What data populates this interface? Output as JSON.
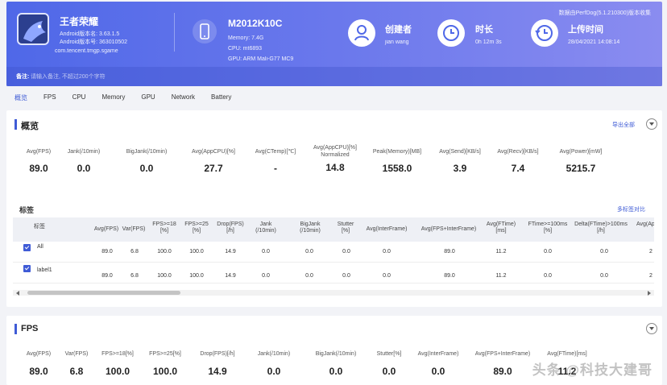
{
  "header": {
    "app_name": "王者荣耀",
    "android_version_line": "Android版本名: 3.63.1.5",
    "android_code_line": "Android版本号: 363010502",
    "package": "com.tencent.tmgp.sgame",
    "device_model": "M2012K10C",
    "memory": "Memory: 7.4G",
    "cpu": "CPU: mt6893",
    "gpu": "GPU: ARM Mali-G77 MC9",
    "creator_title": "创建者",
    "creator_name": "jian wang",
    "duration_title": "时长",
    "duration_value": "0h 12m 3s",
    "upload_title": "上传时间",
    "upload_value": "28/04/2021 14:08:14",
    "perfdog_version": "数据由PerfDog(5.1.210300)版本收集",
    "remark_label": "备注:",
    "remark_placeholder": "请输入备注, 不超过200个字符"
  },
  "tabs": [
    "概览",
    "FPS",
    "CPU",
    "Memory",
    "GPU",
    "Network",
    "Battery"
  ],
  "overview": {
    "title": "概览",
    "export_label": "导出全部",
    "metrics": [
      {
        "label": "Avg(FPS)",
        "value": "89.0"
      },
      {
        "label": "Jank(/10min)",
        "value": "0.0"
      },
      {
        "label": "BigJank(/10min)",
        "value": "0.0"
      },
      {
        "label": "Avg(AppCPU)[%]",
        "value": "27.7"
      },
      {
        "label": "Avg(CTemp)[℃]",
        "value": "-"
      },
      {
        "label": "Avg(AppCPU)[%] Normalized",
        "value": "14.8"
      },
      {
        "label": "Peak(Memory)[MB]",
        "value": "1558.0"
      },
      {
        "label": "Avg(Send)[KB/s]",
        "value": "3.9"
      },
      {
        "label": "Avg(Recv)[KB/s]",
        "value": "7.4"
      },
      {
        "label": "Avg(Power)[mW]",
        "value": "5215.7"
      }
    ],
    "label_section_title": "标签",
    "multi_label_link": "多标签对比"
  },
  "label_table": {
    "headers": [
      "标签",
      "Avg(FPS)",
      "Var(FPS)",
      "FPS>=18 [%]",
      "FPS>=25 [%]",
      "Drop(FPS) [/h]",
      "Jank (/10min)",
      "BigJank (/10min)",
      "Stutter [%]",
      "Avg(InterFrame)",
      "Avg(FPS+InterFrame)",
      "Avg(FTime) [ms]",
      "FTime>=100ms [%]",
      "Delta(FTime)>100ms [/h]",
      "Avg(Ap"
    ],
    "rows": [
      {
        "label": "All",
        "cells": [
          "89.0",
          "6.8",
          "100.0",
          "100.0",
          "14.9",
          "0.0",
          "0.0",
          "0.0",
          "0.0",
          "89.0",
          "11.2",
          "0.0",
          "0.0",
          "2"
        ]
      },
      {
        "label": "label1",
        "cells": [
          "89.0",
          "6.8",
          "100.0",
          "100.0",
          "14.9",
          "0.0",
          "0.0",
          "0.0",
          "0.0",
          "89.0",
          "11.2",
          "0.0",
          "0.0",
          "2"
        ]
      }
    ]
  },
  "fps_card": {
    "title": "FPS",
    "metrics": [
      {
        "label": "Avg(FPS)",
        "value": "89.0"
      },
      {
        "label": "Var(FPS)",
        "value": "6.8"
      },
      {
        "label": "FPS>=18[%]",
        "value": "100.0"
      },
      {
        "label": "FPS>=25[%]",
        "value": "100.0"
      },
      {
        "label": "Drop(FPS)[/h]",
        "value": "14.9"
      },
      {
        "label": "Jank(/10min)",
        "value": "0.0"
      },
      {
        "label": "BigJank(/10min)",
        "value": "0.0"
      },
      {
        "label": "Stutter[%]",
        "value": "0.0"
      },
      {
        "label": "Avg(InterFrame)",
        "value": "0.0"
      },
      {
        "label": "Avg(FPS+InterFrame)",
        "value": "89.0"
      },
      {
        "label": "Avg(FTime)[ms]",
        "value": "11.2"
      }
    ]
  },
  "watermark": "头条 @科技大建哥",
  "colors": {
    "accent": "#3f5bd6",
    "banner_start": "#4f68e8",
    "banner_end": "#8a8cf0"
  }
}
